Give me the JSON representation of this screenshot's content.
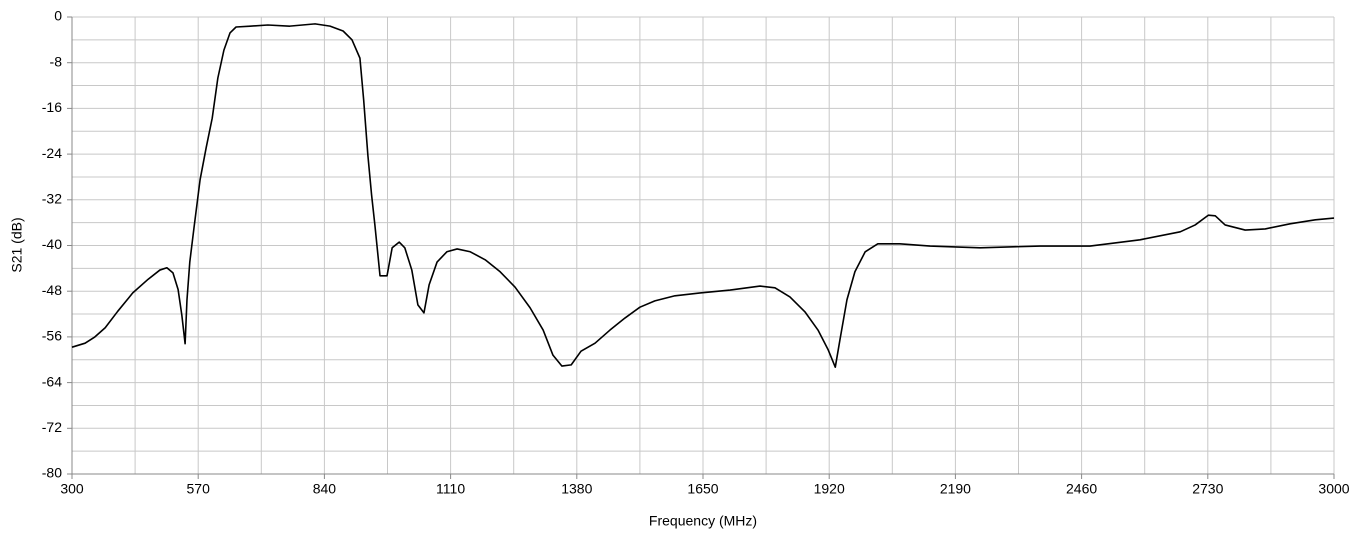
{
  "chart_data": {
    "type": "line",
    "x_label": "Frequency (MHz)",
    "y_label": "S21 (dB)",
    "xlim": [
      300,
      3000
    ],
    "xticks": [
      300,
      570,
      840,
      1110,
      1380,
      1650,
      1920,
      2190,
      2460,
      2730,
      3000
    ],
    "ylim": [
      -80,
      0
    ],
    "yticks": [
      -80,
      -72,
      -64,
      -56,
      -48,
      -40,
      -32,
      -24,
      -16,
      -8,
      0
    ],
    "grid": true,
    "minor_grid": true,
    "series": [
      {
        "color": "#000000",
        "x": [
          300,
          328,
          349,
          371,
          398,
          430,
          463,
          488,
          503,
          516,
          527,
          535,
          542,
          546,
          552,
          561,
          574,
          587,
          600,
          612,
          625,
          638,
          651,
          681,
          719,
          766,
          820,
          852,
          880,
          899,
          916,
          924,
          933,
          941,
          948,
          959,
          974,
          985,
          1000,
          1012,
          1027,
          1040,
          1053,
          1064,
          1081,
          1102,
          1124,
          1152,
          1184,
          1216,
          1248,
          1280,
          1308,
          1329,
          1348,
          1368,
          1389,
          1419,
          1451,
          1483,
          1515,
          1547,
          1590,
          1644,
          1708,
          1772,
          1804,
          1836,
          1868,
          1896,
          1918,
          1933,
          1943,
          1958,
          1975,
          1997,
          2024,
          2071,
          2136,
          2243,
          2371,
          2478,
          2585,
          2671,
          2703,
          2731,
          2746,
          2767,
          2810,
          2853,
          2906,
          2960,
          3000
        ],
        "values": [
          -57.8,
          -57.1,
          -56,
          -54.4,
          -51.5,
          -48.3,
          -45.9,
          -44.3,
          -43.9,
          -44.8,
          -47.7,
          -52.2,
          -57.2,
          -49.5,
          -42.9,
          -36.9,
          -28.5,
          -22.9,
          -17.7,
          -10.7,
          -5.8,
          -2.8,
          -1.75,
          -1.6,
          -1.4,
          -1.6,
          -1.2,
          -1.6,
          -2.45,
          -4.0,
          -7.2,
          -14.5,
          -24.2,
          -31.2,
          -36.4,
          -45.3,
          -45.3,
          -40.4,
          -39.4,
          -40.4,
          -44.3,
          -50.4,
          -51.8,
          -46.9,
          -42.9,
          -41.1,
          -40.6,
          -41.1,
          -42.5,
          -44.6,
          -47.3,
          -50.9,
          -54.8,
          -59.2,
          -61.1,
          -60.9,
          -58.5,
          -57.1,
          -54.8,
          -52.7,
          -50.8,
          -49.7,
          -48.8,
          -48.3,
          -47.8,
          -47.1,
          -47.4,
          -49.0,
          -51.6,
          -54.8,
          -58.3,
          -61.3,
          -56.5,
          -49.5,
          -44.6,
          -41.1,
          -39.7,
          -39.7,
          -40.1,
          -40.4,
          -40.1,
          -40.1,
          -39.0,
          -37.6,
          -36.4,
          -34.7,
          -34.8,
          -36.4,
          -37.3,
          -37.1,
          -36.2,
          -35.5,
          -35.2
        ]
      }
    ]
  }
}
